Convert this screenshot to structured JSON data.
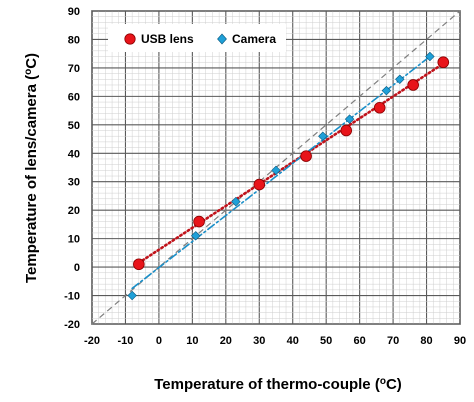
{
  "chart_data": {
    "type": "scatter",
    "xlabel": "Temperature of thermo-couple (°C)",
    "xlabel_main": "Temperature of thermo-couple (",
    "xlabel_sup": "o",
    "xlabel_end": "C)",
    "ylabel_main": "Temperature of lens/camera (",
    "ylabel_sup": "o",
    "ylabel_end": "C)",
    "xlim": [
      -20,
      90
    ],
    "ylim": [
      -20,
      90
    ],
    "xticks": [
      "-20",
      "-10",
      "0",
      "10",
      "20",
      "30",
      "40",
      "50",
      "60",
      "70",
      "80",
      "90"
    ],
    "yticks": [
      "-20",
      "-10",
      "0",
      "10",
      "20",
      "30",
      "40",
      "50",
      "60",
      "70",
      "80",
      "90"
    ],
    "grid": true,
    "legend_position": "top-left",
    "series": [
      {
        "name": "USB lens",
        "marker": "circle",
        "color": "#e8141a",
        "x": [
          -6,
          12,
          30,
          44,
          56,
          66,
          76,
          85
        ],
        "y": [
          1,
          16,
          29,
          39,
          48,
          56,
          64,
          72
        ],
        "trend": [
          [
            -6,
            1.5
          ],
          [
            85,
            71.5
          ]
        ]
      },
      {
        "name": "Camera",
        "marker": "diamond",
        "color": "#1fa0d8",
        "x": [
          -8,
          11,
          23,
          35,
          49,
          57,
          68,
          72,
          81
        ],
        "y": [
          -10,
          11,
          23,
          34,
          46,
          52,
          62,
          66,
          74
        ],
        "trend": [
          [
            -8,
            -7.5
          ],
          [
            81,
            74
          ]
        ]
      }
    ],
    "reference_line": {
      "from": [
        -20,
        -20
      ],
      "to": [
        90,
        90
      ],
      "color": "#7f7f7f"
    }
  }
}
